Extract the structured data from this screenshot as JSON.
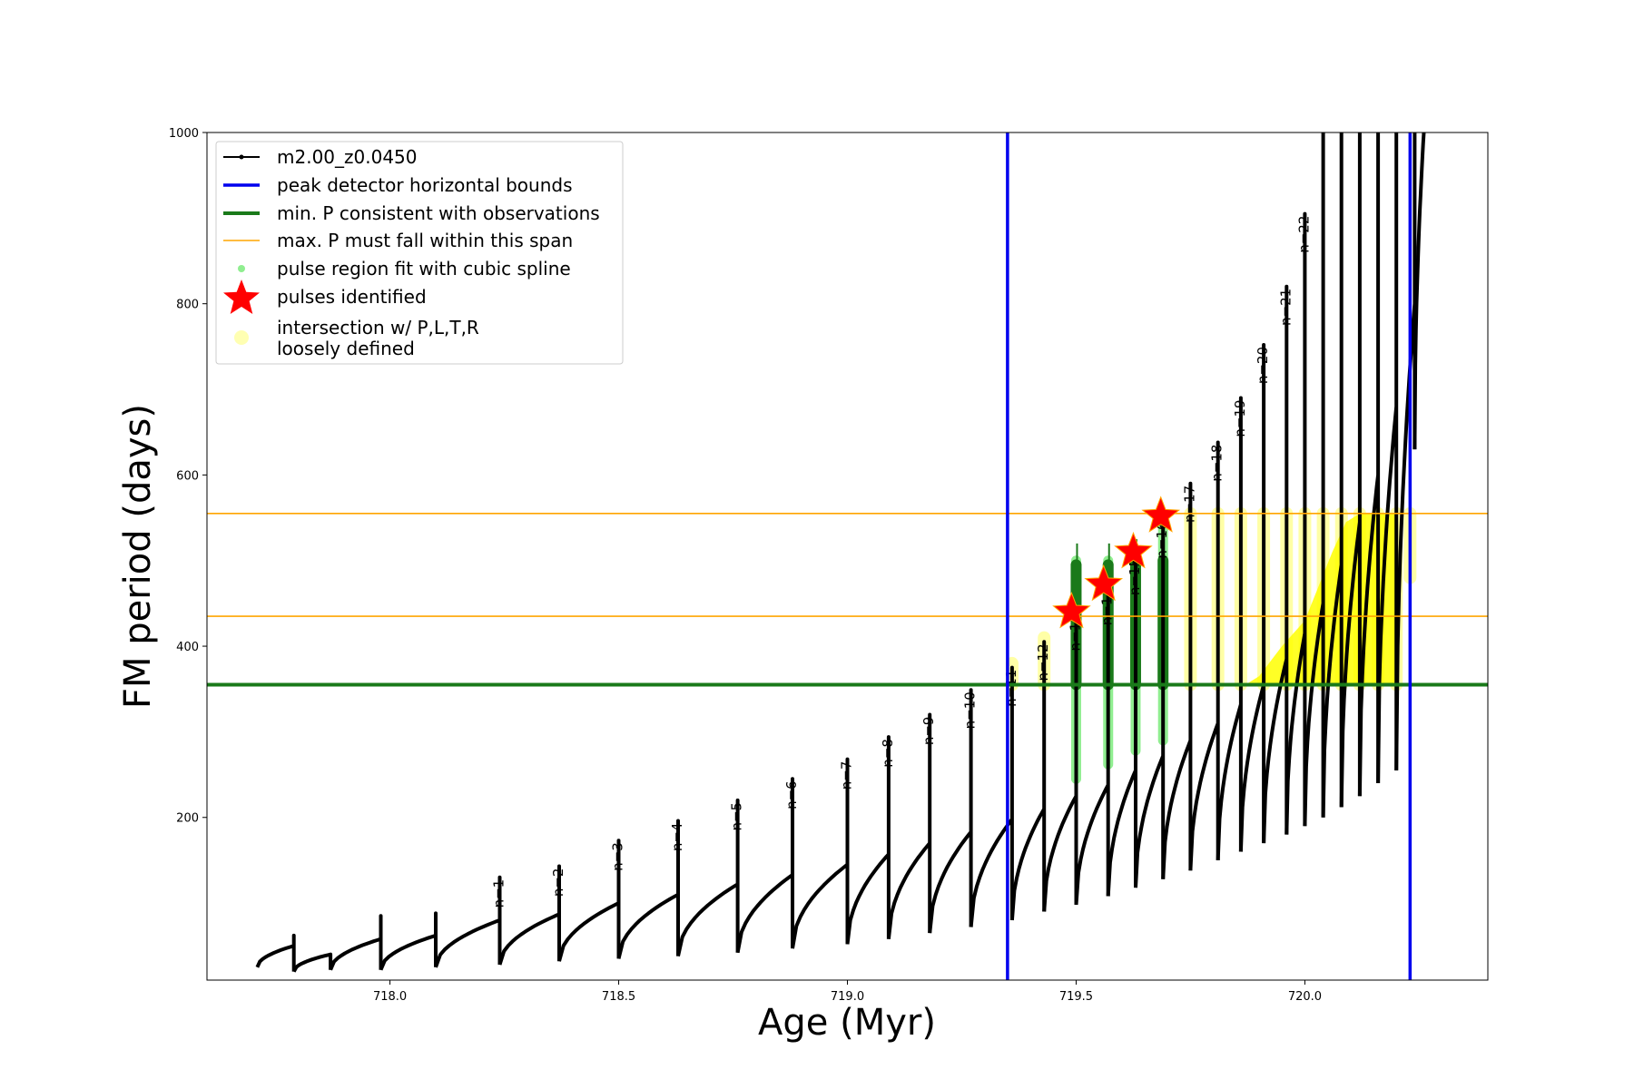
{
  "chart_data": {
    "type": "line",
    "title": "",
    "xlabel": "Age (Myr)",
    "ylabel": "FM period (days)",
    "xlim": [
      717.6,
      720.4
    ],
    "ylim": [
      10,
      1000
    ],
    "xticks": [
      718.0,
      718.5,
      719.0,
      719.5,
      720.0
    ],
    "xtick_labels": [
      "718.0",
      "718.5",
      "719.0",
      "719.5",
      "720.0"
    ],
    "yticks": [
      200,
      400,
      600,
      800,
      1000
    ],
    "ytick_labels": [
      "200",
      "400",
      "600",
      "800",
      "1000"
    ],
    "grid": false,
    "legend_position": "top-left",
    "colors": {
      "track": "#000000",
      "bounds": "#0000ee",
      "min_p": "#1a7a1a",
      "max_p": "#ffa500",
      "pulse_region": "#90ee90",
      "pulse_region_dark": "#1a7a1a",
      "pulse": "#ff0000",
      "loose": "#ffff00"
    },
    "legend": [
      {
        "label": "m2.00_z0.0450",
        "marker": "line-dot"
      },
      {
        "label": "peak detector horizontal bounds",
        "marker": "line-blue"
      },
      {
        "label": "min. P consistent with observations",
        "marker": "line-green"
      },
      {
        "label": "max. P must fall within this span",
        "marker": "line-orange"
      },
      {
        "label": "pulse region fit with cubic spline",
        "marker": "dot-lightgreen"
      },
      {
        "label": "pulses identified",
        "marker": "star-red"
      },
      {
        "label": "intersection w/ P,L,T,R",
        "label2": "loosely defined",
        "marker": "dot-yellow"
      }
    ],
    "vertical_bounds": [
      719.35,
      720.23
    ],
    "min_period": 355,
    "max_period_span": [
      435,
      555
    ],
    "track_segments": [
      {
        "start": 717.71,
        "end": 717.79,
        "p0": 25,
        "p1": 50,
        "peak": 62,
        "n": ""
      },
      {
        "start": 717.79,
        "end": 717.87,
        "p0": 20,
        "p1": 40,
        "peak": 40,
        "n": ""
      },
      {
        "start": 717.87,
        "end": 717.98,
        "p0": 22,
        "p1": 58,
        "peak": 85,
        "n": ""
      },
      {
        "start": 717.98,
        "end": 718.1,
        "p0": 22,
        "p1": 62,
        "peak": 88,
        "n": ""
      },
      {
        "start": 718.1,
        "end": 718.24,
        "p0": 25,
        "p1": 80,
        "peak": 130,
        "n": "n=1"
      },
      {
        "start": 718.24,
        "end": 718.37,
        "p0": 28,
        "p1": 87,
        "peak": 143,
        "n": "n=2"
      },
      {
        "start": 718.37,
        "end": 718.5,
        "p0": 32,
        "p1": 100,
        "peak": 173,
        "n": "n=3"
      },
      {
        "start": 718.5,
        "end": 718.63,
        "p0": 35,
        "p1": 110,
        "peak": 196,
        "n": "n=4"
      },
      {
        "start": 718.63,
        "end": 718.76,
        "p0": 38,
        "p1": 122,
        "peak": 220,
        "n": "n=5"
      },
      {
        "start": 718.76,
        "end": 718.88,
        "p0": 42,
        "p1": 133,
        "peak": 245,
        "n": "n=6"
      },
      {
        "start": 718.88,
        "end": 719.0,
        "p0": 47,
        "p1": 145,
        "peak": 268,
        "n": "n=7"
      },
      {
        "start": 719.0,
        "end": 719.09,
        "p0": 52,
        "p1": 157,
        "peak": 294,
        "n": "n=8"
      },
      {
        "start": 719.09,
        "end": 719.18,
        "p0": 58,
        "p1": 170,
        "peak": 320,
        "n": "n=9"
      },
      {
        "start": 719.18,
        "end": 719.27,
        "p0": 65,
        "p1": 183,
        "peak": 349,
        "n": "n=10"
      },
      {
        "start": 719.27,
        "end": 719.36,
        "p0": 72,
        "p1": 198,
        "peak": 375,
        "n": "n=11"
      },
      {
        "start": 719.36,
        "end": 719.43,
        "p0": 80,
        "p1": 210,
        "peak": 405,
        "n": "n=12"
      },
      {
        "start": 719.43,
        "end": 719.5,
        "p0": 90,
        "p1": 225,
        "peak": 440,
        "n": "n=13"
      },
      {
        "start": 719.5,
        "end": 719.57,
        "p0": 98,
        "p1": 238,
        "peak": 470,
        "n": "n=14"
      },
      {
        "start": 719.57,
        "end": 719.63,
        "p0": 108,
        "p1": 255,
        "peak": 505,
        "n": "n=15"
      },
      {
        "start": 719.63,
        "end": 719.69,
        "p0": 118,
        "p1": 272,
        "peak": 548,
        "n": "n=16"
      },
      {
        "start": 719.69,
        "end": 719.75,
        "p0": 128,
        "p1": 290,
        "peak": 590,
        "n": "n=17"
      },
      {
        "start": 719.75,
        "end": 719.81,
        "p0": 138,
        "p1": 310,
        "peak": 638,
        "n": "n=18"
      },
      {
        "start": 719.81,
        "end": 719.86,
        "p0": 150,
        "p1": 332,
        "peak": 690,
        "n": "n=19"
      },
      {
        "start": 719.86,
        "end": 719.91,
        "p0": 160,
        "p1": 355,
        "peak": 752,
        "n": "n=20"
      },
      {
        "start": 719.91,
        "end": 719.96,
        "p0": 170,
        "p1": 385,
        "peak": 820,
        "n": "n=21"
      },
      {
        "start": 719.96,
        "end": 720.0,
        "p0": 180,
        "p1": 415,
        "peak": 905,
        "n": "n=22"
      },
      {
        "start": 720.0,
        "end": 720.04,
        "p0": 190,
        "p1": 450,
        "peak": 1000,
        "n": ""
      },
      {
        "start": 720.04,
        "end": 720.08,
        "p0": 200,
        "p1": 495,
        "peak": 1000,
        "n": ""
      },
      {
        "start": 720.08,
        "end": 720.12,
        "p0": 212,
        "p1": 545,
        "peak": 1000,
        "n": ""
      },
      {
        "start": 720.12,
        "end": 720.16,
        "p0": 225,
        "p1": 600,
        "peak": 1000,
        "n": ""
      },
      {
        "start": 720.16,
        "end": 720.2,
        "p0": 240,
        "p1": 680,
        "peak": 1000,
        "n": ""
      },
      {
        "start": 720.2,
        "end": 720.24,
        "p0": 255,
        "p1": 800,
        "peak": 1000,
        "n": ""
      },
      {
        "start": 720.24,
        "end": 720.26,
        "p0": 630,
        "p1": 1000,
        "peak": 1000,
        "n": ""
      }
    ],
    "pulse_regions": [
      {
        "x": 719.5,
        "lo": 245,
        "hi": 500,
        "dark_lo": 355,
        "dark_hi": 495
      },
      {
        "x": 719.57,
        "lo": 262,
        "hi": 500,
        "dark_lo": 355,
        "dark_hi": 495
      },
      {
        "x": 719.63,
        "lo": 278,
        "hi": 500,
        "dark_lo": 355,
        "dark_hi": 500
      },
      {
        "x": 719.69,
        "lo": 290,
        "hi": 550,
        "dark_lo": 355,
        "dark_hi": 500
      }
    ],
    "pulses": [
      {
        "x": 719.49,
        "y": 440
      },
      {
        "x": 719.56,
        "y": 472
      },
      {
        "x": 719.625,
        "y": 510
      },
      {
        "x": 719.685,
        "y": 552
      }
    ],
    "loose_regions": [
      {
        "x": 719.36,
        "lo": 355,
        "hi": 380
      },
      {
        "x": 719.43,
        "lo": 355,
        "hi": 410
      },
      {
        "x": 719.75,
        "lo": 355,
        "hi": 555
      },
      {
        "x": 719.81,
        "lo": 355,
        "hi": 555
      },
      {
        "x": 719.86,
        "lo": 355,
        "hi": 555
      },
      {
        "x": 719.91,
        "lo": 355,
        "hi": 555
      },
      {
        "x": 719.96,
        "lo": 355,
        "hi": 555
      },
      {
        "x": 720.0,
        "lo": 355,
        "hi": 555
      },
      {
        "x": 720.04,
        "lo": 355,
        "hi": 555
      },
      {
        "x": 720.08,
        "lo": 355,
        "hi": 555
      },
      {
        "x": 720.12,
        "lo": 355,
        "hi": 555
      },
      {
        "x": 720.16,
        "lo": 355,
        "hi": 555
      },
      {
        "x": 720.2,
        "lo": 355,
        "hi": 555
      },
      {
        "x": 720.23,
        "lo": 480,
        "hi": 555
      }
    ],
    "loose_envelope": [
      [
        719.87,
        355
      ],
      [
        719.9,
        365
      ],
      [
        719.95,
        400
      ],
      [
        720.0,
        430
      ],
      [
        720.03,
        470
      ],
      [
        720.06,
        510
      ],
      [
        720.09,
        545
      ],
      [
        720.12,
        555
      ],
      [
        720.2,
        555
      ],
      [
        720.2,
        355
      ]
    ]
  }
}
